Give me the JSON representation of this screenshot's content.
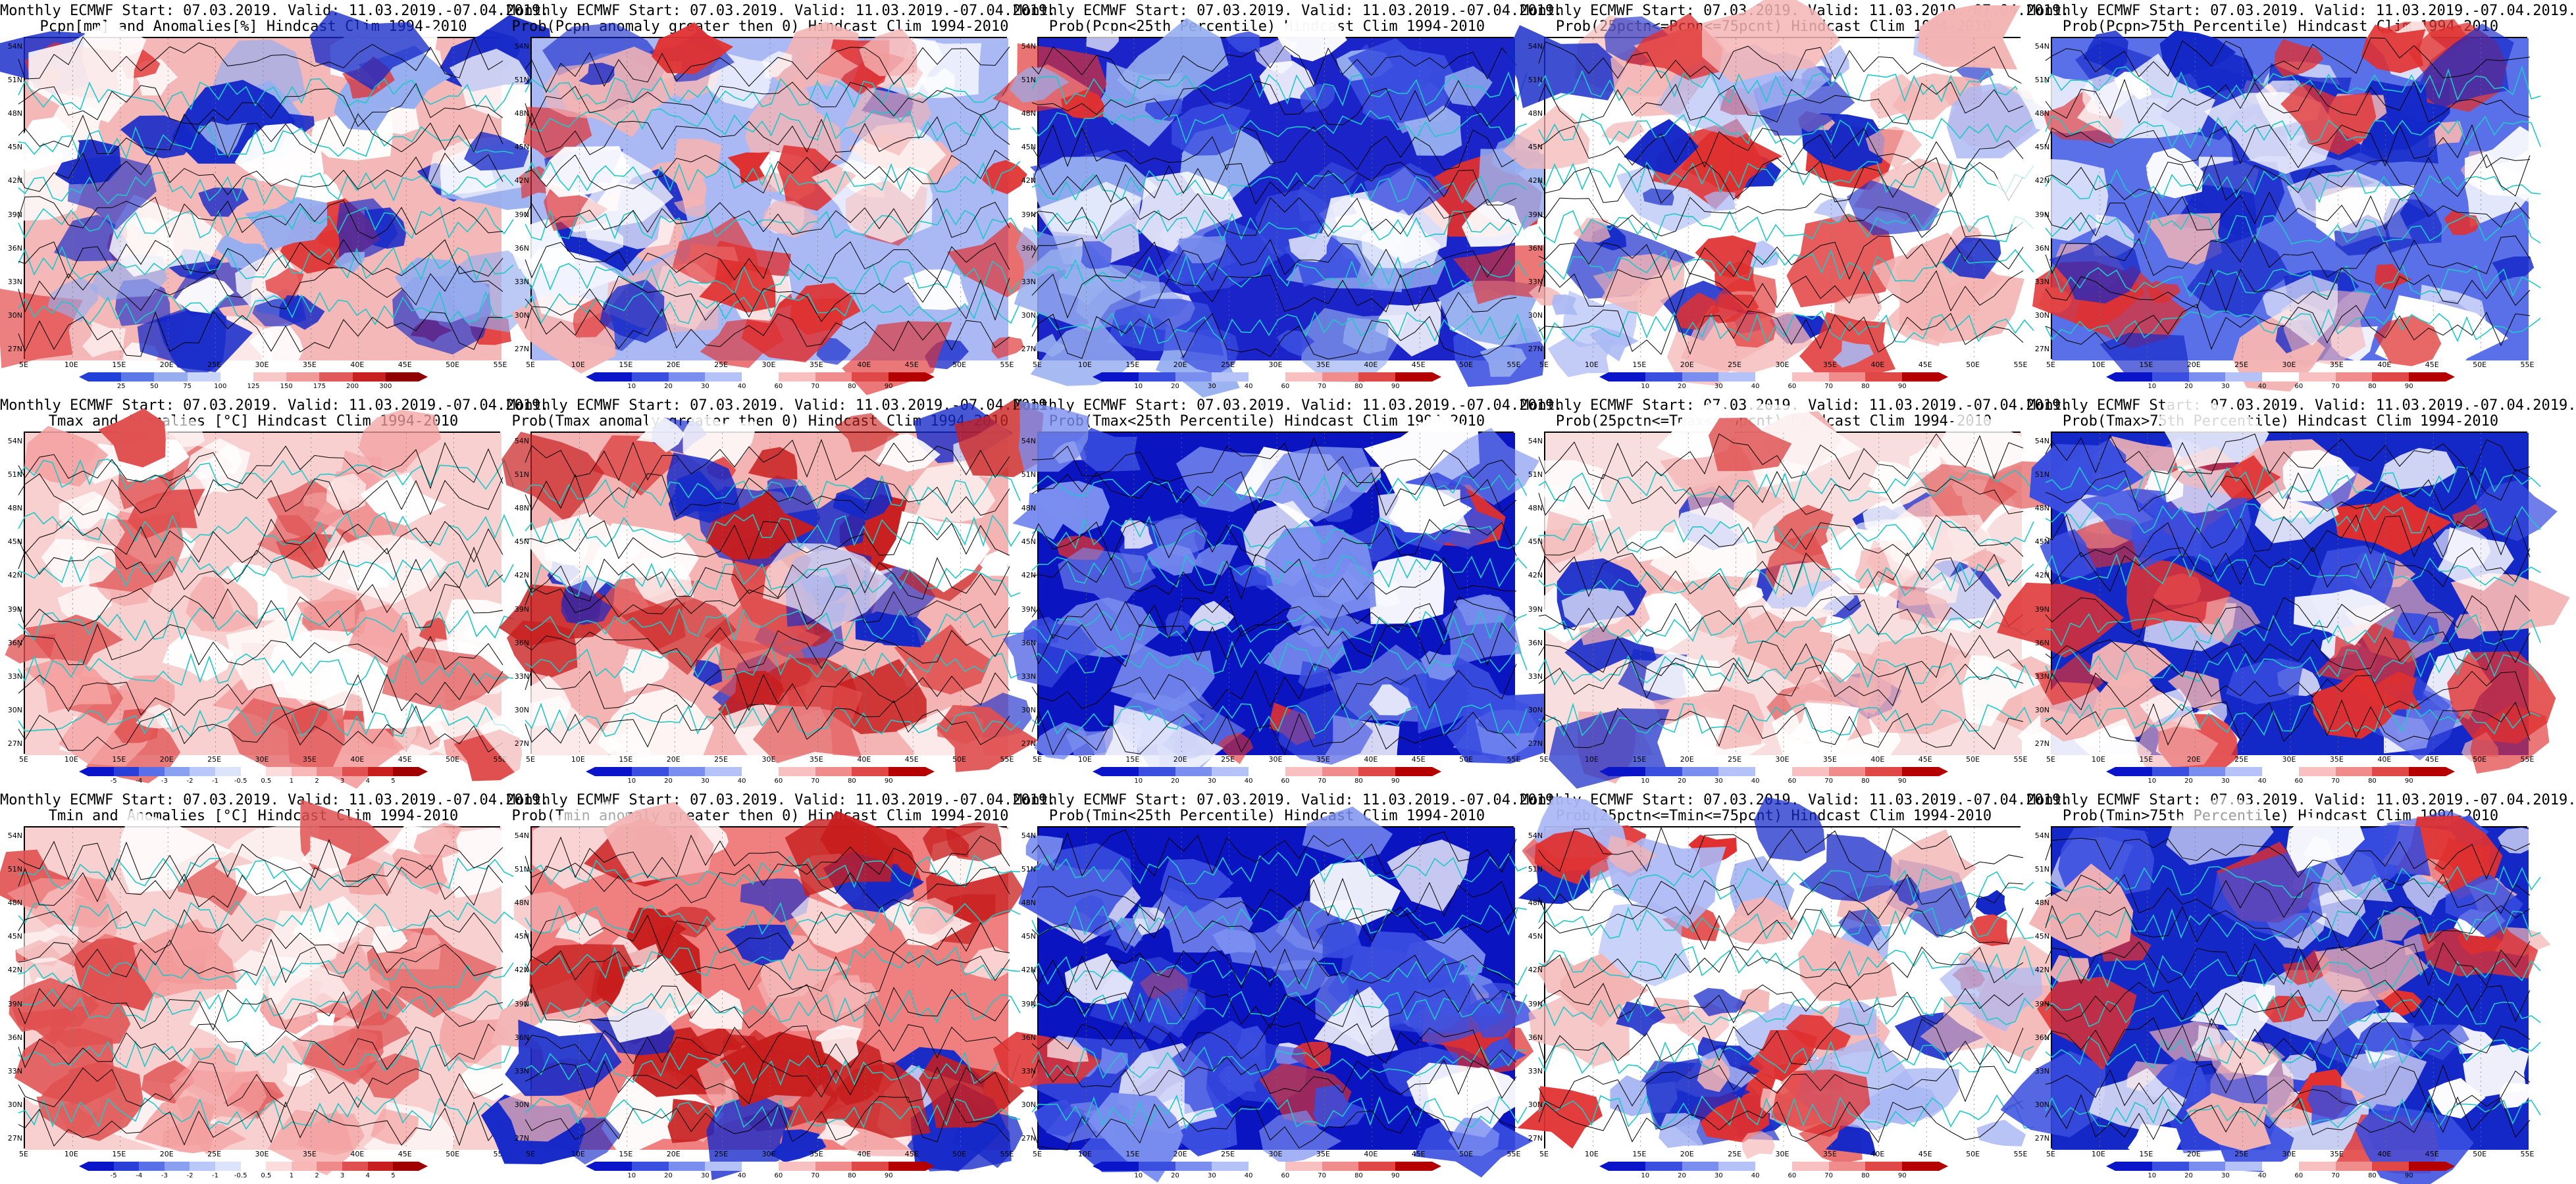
{
  "panels": [
    {
      "row": 0,
      "col": 0,
      "line1": "Monthly ECMWF Start: 07.03.2019. Valid: 11.03.2019.-07.04.2019.",
      "line2": "Pcpn[mm] and Anomalies[%] Hindcast Clim 1994-2010",
      "bar": "precip"
    },
    {
      "row": 0,
      "col": 1,
      "line1": "Monthly ECMWF Start: 07.03.2019. Valid: 11.03.2019.-07.04.2019.",
      "line2": "Prob(Pcpn anomaly greater then 0) Hindcast Clim 1994-2010",
      "bar": "prob"
    },
    {
      "row": 0,
      "col": 2,
      "line1": "Monthly ECMWF Start: 07.03.2019. Valid: 11.03.2019.-07.04.2019.",
      "line2": "Prob(Pcpn<25th Percentile) Hindcast Clim 1994-2010",
      "bar": "prob"
    },
    {
      "row": 0,
      "col": 3,
      "line1": "Monthly ECMWF Start: 07.03.2019. Valid: 11.03.2019.-07.04.2019.",
      "line2": "Prob(25pctn<=Pcpn<=75pcnt) Hindcast Clim 1994-2010",
      "bar": "prob"
    },
    {
      "row": 0,
      "col": 4,
      "line1": "Monthly ECMWF Start: 07.03.2019. Valid: 11.03.2019.-07.04.2019.",
      "line2": "Prob(Pcpn>75th Percentile) Hindcast Clim 1994-2010",
      "bar": "prob"
    },
    {
      "row": 1,
      "col": 0,
      "line1": "Monthly ECMWF Start: 07.03.2019. Valid: 11.03.2019.-07.04.2019.",
      "line2": "Tmax and Anomalies [°C] Hindcast Clim 1994-2010",
      "bar": "temp"
    },
    {
      "row": 1,
      "col": 1,
      "line1": "Monthly ECMWF Start: 07.03.2019. Valid: 11.03.2019.-07.04.2019.",
      "line2": "Prob(Tmax anomaly greater then 0) Hindcast Clim 1994-2010",
      "bar": "prob"
    },
    {
      "row": 1,
      "col": 2,
      "line1": "Monthly ECMWF Start: 07.03.2019. Valid: 11.03.2019.-07.04.2019.",
      "line2": "Prob(Tmax<25th Percentile) Hindcast Clim 1994-2010",
      "bar": "prob"
    },
    {
      "row": 1,
      "col": 3,
      "line1": "Monthly ECMWF Start: 07.03.2019. Valid: 11.03.2019.-07.04.2019.",
      "line2": "Prob(25pctn<=Tmax<=75pcnt) Hindcast Clim 1994-2010",
      "bar": "prob"
    },
    {
      "row": 1,
      "col": 4,
      "line1": "Monthly ECMWF Start: 07.03.2019. Valid: 11.03.2019.-07.04.2019.",
      "line2": "Prob(Tmax>75th Percentile) Hindcast Clim 1994-2010",
      "bar": "prob"
    },
    {
      "row": 2,
      "col": 0,
      "line1": "Monthly ECMWF Start: 07.03.2019. Valid: 11.03.2019.-07.04.2019.",
      "line2": "Tmin and Anomalies [°C] Hindcast Clim 1994-2010",
      "bar": "temp"
    },
    {
      "row": 2,
      "col": 1,
      "line1": "Monthly ECMWF Start: 07.03.2019. Valid: 11.03.2019.-07.04.2019.",
      "line2": "Prob(Tmin anomaly greater then 0) Hindcast Clim 1994-2010",
      "bar": "prob"
    },
    {
      "row": 2,
      "col": 2,
      "line1": "Monthly ECMWF Start: 07.03.2019. Valid: 11.03.2019.-07.04.2019.",
      "line2": "Prob(Tmin<25th Percentile) Hindcast Clim 1994-2010",
      "bar": "prob"
    },
    {
      "row": 2,
      "col": 3,
      "line1": "Monthly ECMWF Start: 07.03.2019. Valid: 11.03.2019.-07.04.2019.",
      "line2": "Prob(25pctn<=Tmin<=75pcnt) Hindcast Clim 1994-2010",
      "bar": "prob"
    },
    {
      "row": 2,
      "col": 4,
      "line1": "Monthly ECMWF Start: 07.03.2019. Valid: 11.03.2019.-07.04.2019.",
      "line2": "Prob(Tmin>75th Percentile) Hindcast Clim 1994-2010",
      "bar": "prob"
    }
  ],
  "lat_labels": [
    "54N",
    "51N",
    "48N",
    "45N",
    "42N",
    "39N",
    "36N",
    "33N",
    "30N",
    "27N"
  ],
  "lon_labels": [
    "5E",
    "10E",
    "15E",
    "20E",
    "25E",
    "30E",
    "35E",
    "40E",
    "45E",
    "50E",
    "55E"
  ],
  "colorbars": {
    "precip": {
      "ticks": [
        "25",
        "50",
        "75",
        "100",
        "125",
        "150",
        "175",
        "200",
        "300"
      ],
      "colors": [
        "#2040d8",
        "#5a78e8",
        "#96aef0",
        "#c8d4f8",
        "#ffffff",
        "#f8c8c8",
        "#f09a9a",
        "#e05a5a",
        "#c82020",
        "#900000"
      ]
    },
    "prob": {
      "ticks": [
        "10",
        "20",
        "30",
        "40",
        "60",
        "70",
        "80",
        "90"
      ],
      "colors": [
        "#0a14c8",
        "#3a4ee0",
        "#7a8ef0",
        "#b4c2f8",
        "#ffffff",
        "#f8c0c0",
        "#f08c8c",
        "#e04848",
        "#b40000"
      ]
    },
    "temp": {
      "ticks": [
        "-5",
        "-4",
        "-3",
        "-2",
        "-1",
        "-0.5",
        "0.5",
        "1",
        "2",
        "3",
        "4",
        "5"
      ],
      "colors": [
        "#0a14c8",
        "#2a3ed8",
        "#5a70e8",
        "#8aa0f0",
        "#b8c8f8",
        "#dce4fc",
        "#ffffff",
        "#fcdcdc",
        "#f8b8b8",
        "#f08a8a",
        "#e05050",
        "#c81e1e",
        "#a00000"
      ]
    }
  },
  "palette": {
    "map_blue_dark": "#0a14c0",
    "map_blue_light": "#aab8f4",
    "map_red": "#e03030",
    "map_red_light": "#f4b4b4",
    "coast": "#20c8c8",
    "contour": "#000000"
  }
}
